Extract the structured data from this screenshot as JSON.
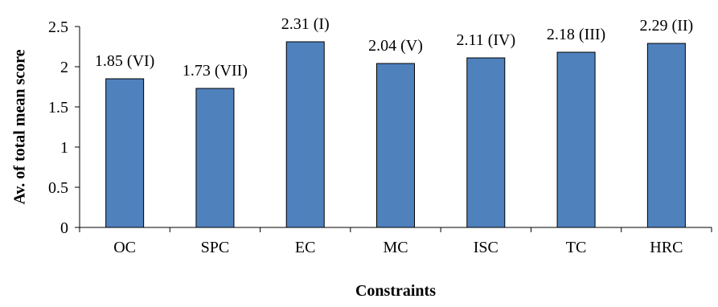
{
  "chart_data": {
    "type": "bar",
    "title": "",
    "xlabel": "Constraints",
    "ylabel": "Av. of total mean score",
    "categories": [
      "OC",
      "SPC",
      "EC",
      "MC",
      "ISC",
      "TC",
      "HRC"
    ],
    "values": [
      1.85,
      1.73,
      2.31,
      2.04,
      2.11,
      2.18,
      2.29
    ],
    "data_labels": [
      "1.85 (VI)",
      "1.73 (VII)",
      "2.31 (I)",
      "2.04 (V)",
      "2.11 (IV)",
      "2.18 (III)",
      "2.29 (II)"
    ],
    "ylim": [
      0,
      2.5
    ],
    "yticks": [
      0,
      0.5,
      1,
      1.5,
      2,
      2.5
    ],
    "ytick_labels": [
      "0",
      "0.5",
      "1",
      "1.5",
      "2",
      "2.5"
    ],
    "grid": false,
    "legend": "none",
    "bar_color": "#4F81BD",
    "bar_edge_color": "#000000"
  }
}
